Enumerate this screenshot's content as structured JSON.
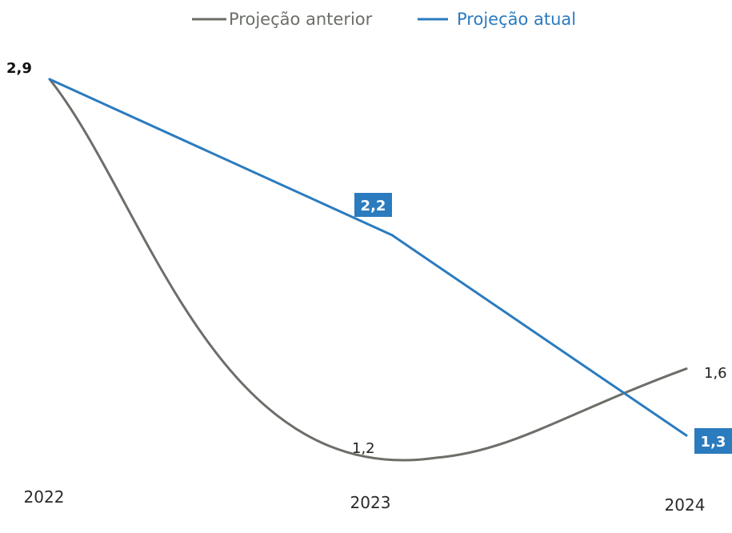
{
  "chart_data": {
    "type": "line",
    "categories": [
      "2022",
      "2023",
      "2024"
    ],
    "series": [
      {
        "name": "Projeção anterior",
        "color": "#6b6f68",
        "values": [
          2.9,
          1.2,
          1.6
        ],
        "labels": [
          "2,9",
          "1,2",
          "1,6"
        ]
      },
      {
        "name": "Projeção atual",
        "color": "#2b7bbf",
        "values": [
          2.9,
          2.2,
          1.3
        ],
        "labels": [
          "2,9",
          "2,2",
          "1,3"
        ]
      }
    ],
    "ylim": [
      1.0,
      3.0
    ],
    "grid": false,
    "legend_position": "top-center"
  }
}
